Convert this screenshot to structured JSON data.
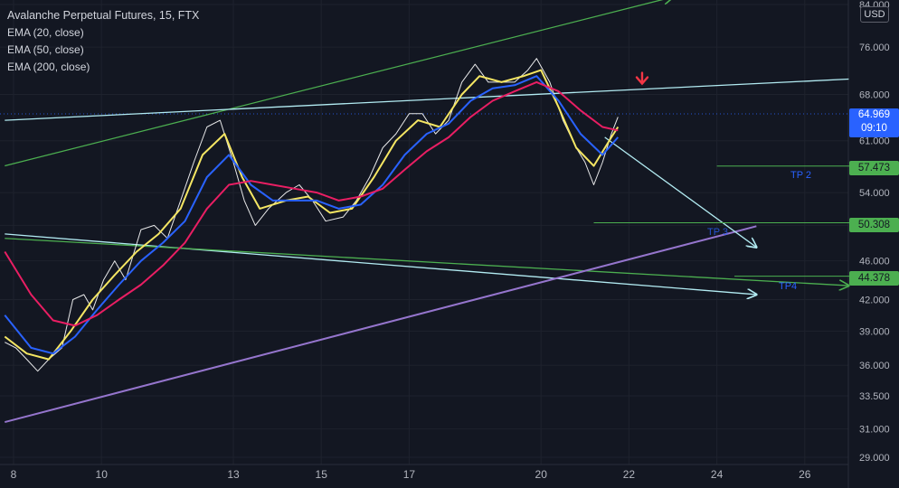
{
  "legend": {
    "title": "Avalanche Perpetual Futures, 15, FTX",
    "indicators": [
      "EMA (20, close)",
      "EMA (50, close)",
      "EMA (200, close)"
    ]
  },
  "currency": "USD",
  "current_price": {
    "value": "64.969",
    "countdown": "09:10",
    "color": "#2962ff"
  },
  "levels": [
    {
      "value": "57.473",
      "label": "TP 2"
    },
    {
      "value": "50.308",
      "label": "TP 3"
    },
    {
      "value": "44.378",
      "label": "TP4"
    }
  ],
  "level_color": "#4caf50",
  "chart_data": {
    "type": "line",
    "x_ticks": [
      "8",
      "10",
      "13",
      "15",
      "17",
      "20",
      "22",
      "24",
      "26"
    ],
    "y_ticks": [
      "84.000",
      "76.000",
      "68.000",
      "61.000",
      "54.000",
      "50.000",
      "46.000",
      "42.000",
      "39.000",
      "36.000",
      "33.500",
      "31.000",
      "29.000"
    ],
    "ylim": [
      29,
      84
    ],
    "y_scale": "log",
    "series": [
      {
        "color": "#ffffff",
        "points": [
          [
            7.8,
            38
          ],
          [
            8.05,
            37.5
          ],
          [
            8.3,
            36.5
          ],
          [
            8.55,
            35.5
          ],
          [
            8.8,
            36.5
          ],
          [
            9.1,
            37.5
          ],
          [
            9.35,
            42
          ],
          [
            9.6,
            42.5
          ],
          [
            9.8,
            41
          ],
          [
            10.05,
            44
          ],
          [
            10.3,
            46
          ],
          [
            10.55,
            44
          ],
          [
            10.9,
            49.5
          ],
          [
            11.2,
            50
          ],
          [
            11.5,
            48.5
          ],
          [
            11.8,
            53
          ],
          [
            12.1,
            58
          ],
          [
            12.4,
            63
          ],
          [
            12.7,
            64
          ],
          [
            13.0,
            58
          ],
          [
            13.25,
            53
          ],
          [
            13.5,
            50
          ],
          [
            13.8,
            52
          ],
          [
            14.2,
            54
          ],
          [
            14.5,
            55
          ],
          [
            14.8,
            53
          ],
          [
            15.1,
            50.5
          ],
          [
            15.5,
            51
          ],
          [
            15.8,
            53
          ],
          [
            16.1,
            56
          ],
          [
            16.4,
            60
          ],
          [
            16.7,
            62
          ],
          [
            17.0,
            65
          ],
          [
            17.3,
            65
          ],
          [
            17.6,
            62
          ],
          [
            17.9,
            64
          ],
          [
            18.2,
            70
          ],
          [
            18.5,
            73
          ],
          [
            18.8,
            70
          ],
          [
            19.1,
            70
          ],
          [
            19.4,
            70
          ],
          [
            19.7,
            72
          ],
          [
            19.9,
            74
          ],
          [
            20.2,
            70
          ],
          [
            20.5,
            64
          ],
          [
            20.8,
            60
          ],
          [
            21.0,
            58
          ],
          [
            21.2,
            55
          ],
          [
            21.4,
            58
          ],
          [
            21.6,
            62
          ],
          [
            21.75,
            64.5
          ]
        ]
      },
      {
        "color": "#f5e663",
        "points": [
          [
            7.8,
            38.5
          ],
          [
            8.3,
            37
          ],
          [
            8.8,
            36.5
          ],
          [
            9.3,
            39
          ],
          [
            9.8,
            42
          ],
          [
            10.3,
            44.5
          ],
          [
            10.8,
            47
          ],
          [
            11.3,
            49
          ],
          [
            11.8,
            52
          ],
          [
            12.3,
            59
          ],
          [
            12.8,
            62
          ],
          [
            13.2,
            56
          ],
          [
            13.6,
            52
          ],
          [
            14.2,
            53
          ],
          [
            14.7,
            53.5
          ],
          [
            15.2,
            51.5
          ],
          [
            15.7,
            52
          ],
          [
            16.2,
            56
          ],
          [
            16.7,
            61
          ],
          [
            17.2,
            64
          ],
          [
            17.7,
            63
          ],
          [
            18.2,
            68
          ],
          [
            18.6,
            71
          ],
          [
            19.1,
            70
          ],
          [
            19.6,
            71
          ],
          [
            20.0,
            72
          ],
          [
            20.4,
            66
          ],
          [
            20.8,
            60
          ],
          [
            21.2,
            57.5
          ],
          [
            21.6,
            61.5
          ],
          [
            21.75,
            63
          ]
        ]
      },
      {
        "color": "#2962ff",
        "points": [
          [
            7.8,
            40.5
          ],
          [
            8.4,
            37.5
          ],
          [
            8.9,
            37
          ],
          [
            9.4,
            38.5
          ],
          [
            9.9,
            41
          ],
          [
            10.4,
            43.5
          ],
          [
            10.9,
            46
          ],
          [
            11.4,
            48
          ],
          [
            11.9,
            50.5
          ],
          [
            12.4,
            56
          ],
          [
            12.9,
            59
          ],
          [
            13.4,
            55
          ],
          [
            13.9,
            53
          ],
          [
            14.4,
            53
          ],
          [
            14.9,
            53
          ],
          [
            15.4,
            52
          ],
          [
            15.9,
            52.5
          ],
          [
            16.4,
            55
          ],
          [
            16.9,
            59
          ],
          [
            17.4,
            62
          ],
          [
            17.9,
            63.5
          ],
          [
            18.4,
            67
          ],
          [
            18.9,
            69
          ],
          [
            19.4,
            69.5
          ],
          [
            19.9,
            71
          ],
          [
            20.4,
            67
          ],
          [
            20.9,
            62
          ],
          [
            21.4,
            59
          ],
          [
            21.75,
            61.5
          ]
        ]
      },
      {
        "color": "#e91e63",
        "points": [
          [
            7.8,
            47
          ],
          [
            8.4,
            42.5
          ],
          [
            8.9,
            40
          ],
          [
            9.4,
            39.5
          ],
          [
            9.9,
            40.5
          ],
          [
            10.4,
            42
          ],
          [
            10.9,
            43.5
          ],
          [
            11.4,
            45.5
          ],
          [
            11.9,
            48
          ],
          [
            12.4,
            52
          ],
          [
            12.9,
            55
          ],
          [
            13.4,
            55.5
          ],
          [
            13.9,
            55
          ],
          [
            14.4,
            54.5
          ],
          [
            14.9,
            54
          ],
          [
            15.4,
            53
          ],
          [
            15.9,
            53.5
          ],
          [
            16.4,
            54.5
          ],
          [
            16.9,
            57
          ],
          [
            17.4,
            59.5
          ],
          [
            17.9,
            61.5
          ],
          [
            18.4,
            64.5
          ],
          [
            18.9,
            67
          ],
          [
            19.4,
            68.5
          ],
          [
            19.9,
            70
          ],
          [
            20.4,
            68.5
          ],
          [
            20.9,
            65.5
          ],
          [
            21.4,
            63
          ],
          [
            21.75,
            62.5
          ]
        ]
      }
    ],
    "trendlines": [
      {
        "color": "#4caf50",
        "from": [
          7.8,
          57.5
        ],
        "to": [
          23.0,
          85.5
        ],
        "arrow": true
      },
      {
        "color": "#b2ebf2",
        "from": [
          7.8,
          64
        ],
        "to": [
          27.0,
          70.5
        ],
        "arrow": false
      },
      {
        "color": "#b2ebf2",
        "from": [
          7.8,
          49
        ],
        "to": [
          24.9,
          42.5
        ],
        "arrow": true
      },
      {
        "color": "#4caf50",
        "from": [
          7.8,
          48.5
        ],
        "to": [
          27.0,
          43.4
        ],
        "arrow": true
      },
      {
        "color": "#9575cd",
        "from": [
          7.8,
          31.5
        ],
        "to": [
          24.9,
          49.9
        ],
        "arrow": false
      },
      {
        "color": "#b2ebf2",
        "from": [
          21.45,
          61.5
        ],
        "to": [
          24.9,
          47.5
        ],
        "arrow": true
      }
    ],
    "horizontal_lines": [
      {
        "color": "#4caf50",
        "value": 57.473,
        "from": 24.0,
        "to": 27.2
      },
      {
        "color": "#4caf50",
        "value": 50.308,
        "from": 21.2,
        "to": 27.2
      },
      {
        "color": "#4caf50",
        "value": 44.378,
        "from": 24.4,
        "to": 27.2
      }
    ],
    "current_price_line": 64.969,
    "marker": {
      "type": "arrow-down",
      "color": "#f23645",
      "x": 22.3,
      "y": 70.2
    }
  }
}
